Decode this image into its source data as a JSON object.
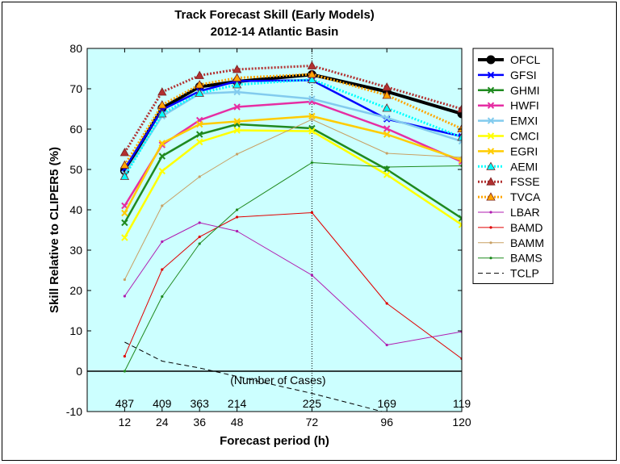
{
  "chart_data": {
    "type": "line",
    "title": "Track Forecast Skill (Early Models)",
    "subtitle": "2012-14 Atlantic Basin",
    "xlabel": "Forecast period (h)",
    "ylabel": "Skill Relative to CLIPER5 (%)",
    "x": [
      12,
      24,
      36,
      48,
      72,
      96,
      120
    ],
    "xlim": [
      0,
      120
    ],
    "ylim": [
      -10,
      80
    ],
    "yticks": [
      -10,
      0,
      10,
      20,
      30,
      40,
      50,
      60,
      70,
      80
    ],
    "legend_position": "right, outside plot area",
    "background": "#ccffff",
    "cases_label": "(Number of Cases)",
    "cases": [
      487,
      409,
      363,
      214,
      225,
      169,
      119
    ],
    "series": [
      {
        "name": "OFCL",
        "color": "#000000",
        "dash": "solid",
        "marker": "circle",
        "width": 4,
        "values": [
          49.7,
          65.2,
          70.5,
          71.8,
          73.5,
          69.3,
          63.8
        ]
      },
      {
        "name": "GFSI",
        "color": "#0000ff",
        "dash": "solid",
        "marker": "x",
        "width": 2.5,
        "values": [
          50.2,
          64.8,
          69.4,
          71.9,
          72.1,
          62.5,
          58.2
        ]
      },
      {
        "name": "GHMI",
        "color": "#1f8a1f",
        "dash": "solid",
        "marker": "x",
        "width": 2.5,
        "values": [
          36.8,
          53.3,
          58.7,
          61.2,
          60.2,
          50.0,
          37.9
        ]
      },
      {
        "name": "HWFI",
        "color": "#e62ea3",
        "dash": "solid",
        "marker": "x",
        "width": 2.5,
        "values": [
          41.0,
          56.1,
          62.2,
          65.5,
          66.8,
          60.1,
          51.9
        ]
      },
      {
        "name": "EMXI",
        "color": "#82cbee",
        "dash": "solid",
        "marker": "x",
        "width": 2.5,
        "values": [
          48.9,
          63.2,
          68.8,
          69.2,
          67.5,
          62.8,
          57.0
        ]
      },
      {
        "name": "CMCI",
        "color": "#ffff00",
        "dash": "solid",
        "marker": "x",
        "width": 2.5,
        "values": [
          33.1,
          49.6,
          56.8,
          59.7,
          59.5,
          48.7,
          36.3
        ]
      },
      {
        "name": "EGRI",
        "color": "#ffcc00",
        "dash": "solid",
        "marker": "x",
        "width": 2.5,
        "values": [
          39.2,
          56.5,
          61.2,
          61.9,
          63.2,
          58.7,
          52.3
        ]
      },
      {
        "name": "AEMI",
        "color": "#00ffff",
        "dash": "dotted",
        "marker": "triangle",
        "width": 3,
        "values": [
          48.3,
          63.8,
          68.9,
          71.0,
          72.3,
          65.2,
          58.0
        ]
      },
      {
        "name": "FSSE",
        "color": "#b23030",
        "dash": "dotted",
        "marker": "triangle",
        "width": 3,
        "values": [
          54.2,
          69.2,
          73.3,
          74.8,
          75.7,
          70.4,
          65.0
        ]
      },
      {
        "name": "TVCA",
        "color": "#ffa500",
        "dash": "dotted",
        "marker": "triangle",
        "width": 3,
        "values": [
          51.1,
          66.0,
          71.0,
          72.7,
          73.6,
          68.4,
          60.1
        ]
      },
      {
        "name": "LBAR",
        "color": "#b01cb0",
        "dash": "solid",
        "marker": "dot",
        "width": 1,
        "values": [
          18.6,
          32.1,
          36.8,
          34.7,
          23.8,
          6.5,
          9.8
        ]
      },
      {
        "name": "BAMD",
        "color": "#e00000",
        "dash": "solid",
        "marker": "dot",
        "width": 1,
        "values": [
          3.7,
          25.2,
          33.3,
          38.2,
          39.3,
          16.8,
          3.1
        ]
      },
      {
        "name": "BAMM",
        "color": "#c8a064",
        "dash": "solid",
        "marker": "dot",
        "width": 1,
        "values": [
          22.7,
          41.0,
          48.2,
          53.8,
          62.4,
          54.0,
          53.0
        ]
      },
      {
        "name": "BAMS",
        "color": "#1f8a1f",
        "dash": "solid",
        "marker": "dot",
        "width": 1,
        "values": [
          0.0,
          18.5,
          31.6,
          40.0,
          51.7,
          50.6,
          50.9
        ]
      },
      {
        "name": "TCLP",
        "color": "#000000",
        "dash": "dashed",
        "marker": "none",
        "width": 1,
        "values": [
          7.2,
          2.5,
          0.8,
          -1.3,
          -5.5,
          -10.3,
          null
        ]
      }
    ]
  }
}
